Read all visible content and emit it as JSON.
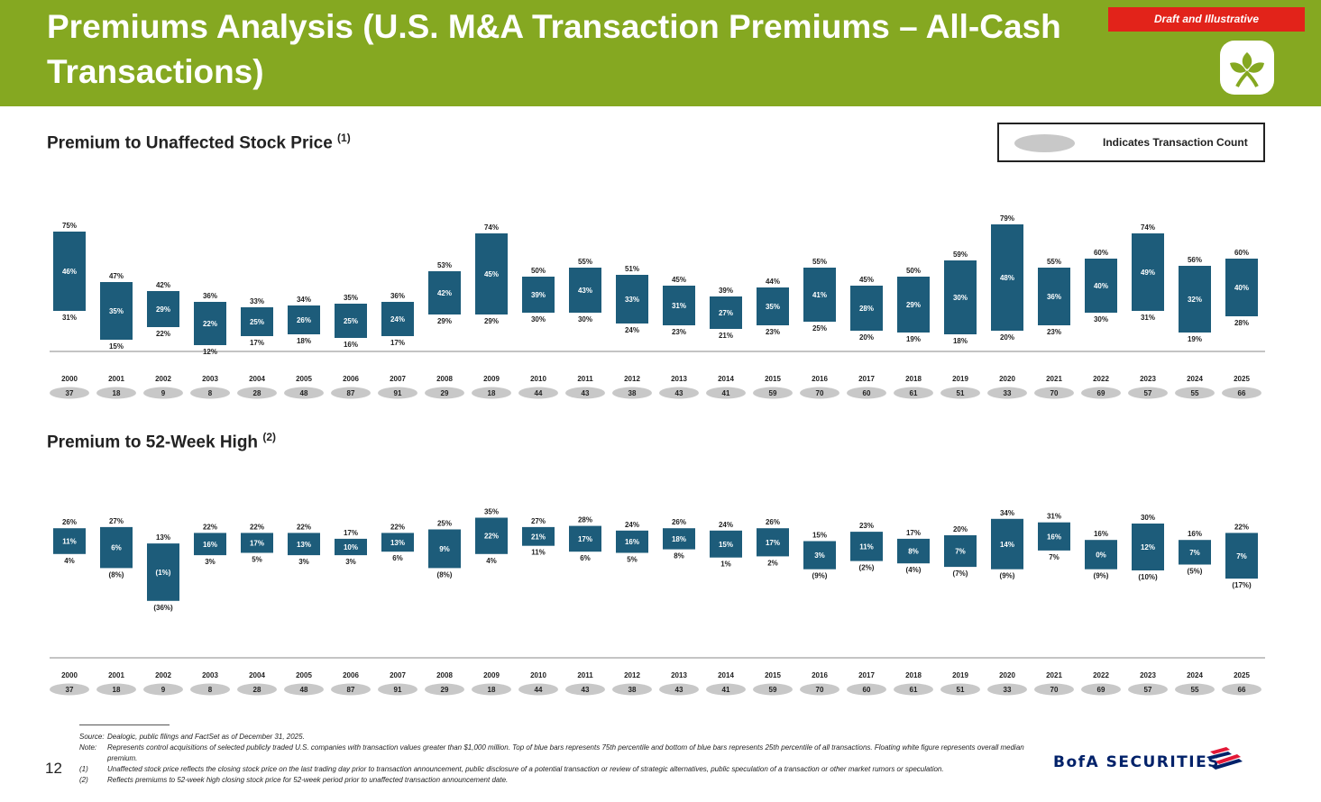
{
  "header": {
    "title": "Premiums Analysis (U.S. M&A Transaction Premiums – All-Cash Transactions)",
    "badge": "Draft and Illustrative",
    "logo_icon": "leaf-logo-icon"
  },
  "legend": {
    "label": "Indicates Transaction Count",
    "oval_color": "#c8c8c8"
  },
  "colors": {
    "header_green": "#85A821",
    "bar": "#1D5C7A",
    "badge_red": "#E2231A",
    "oval": "#c8c8c8"
  },
  "chart_data": [
    {
      "type": "bar",
      "title": "Premium to Unaffected Stock Price",
      "title_note": "(1)",
      "categories": [
        "2000",
        "2001",
        "2002",
        "2003",
        "2004",
        "2005",
        "2006",
        "2007",
        "2008",
        "2009",
        "2010",
        "2011",
        "2012",
        "2013",
        "2014",
        "2015",
        "2016",
        "2017",
        "2018",
        "2019",
        "2020",
        "2021",
        "2022",
        "2023",
        "2024",
        "2025"
      ],
      "series": [
        {
          "name": "75th percentile",
          "values": [
            75,
            47,
            42,
            36,
            33,
            34,
            35,
            36,
            53,
            74,
            50,
            55,
            51,
            45,
            39,
            44,
            55,
            45,
            50,
            59,
            79,
            55,
            60,
            74,
            56,
            60
          ],
          "labels": [
            "75%",
            "47%",
            "42%",
            "36%",
            "33%",
            "34%",
            "35%",
            "36%",
            "53%",
            "74%",
            "50%",
            "55%",
            "51%",
            "45%",
            "39%",
            "44%",
            "55%",
            "45%",
            "50%",
            "59%",
            "79%",
            "55%",
            "60%",
            "74%",
            "56%",
            "60%"
          ]
        },
        {
          "name": "Median",
          "values": [
            46,
            35,
            29,
            22,
            25,
            26,
            25,
            24,
            42,
            45,
            39,
            43,
            33,
            31,
            27,
            35,
            41,
            28,
            29,
            30,
            48,
            36,
            40,
            49,
            32,
            40
          ],
          "labels": [
            "46%",
            "35%",
            "29%",
            "22%",
            "25%",
            "26%",
            "25%",
            "24%",
            "42%",
            "45%",
            "39%",
            "43%",
            "33%",
            "31%",
            "27%",
            "35%",
            "41%",
            "28%",
            "29%",
            "30%",
            "48%",
            "36%",
            "40%",
            "49%",
            "32%",
            "40%"
          ]
        },
        {
          "name": "25th percentile",
          "values": [
            31,
            15,
            22,
            12,
            17,
            18,
            16,
            17,
            29,
            29,
            30,
            30,
            24,
            23,
            21,
            23,
            25,
            20,
            19,
            18,
            20,
            23,
            30,
            31,
            19,
            28
          ],
          "labels": [
            "31%",
            "15%",
            "22%",
            "12%",
            "17%",
            "18%",
            "16%",
            "17%",
            "29%",
            "29%",
            "30%",
            "30%",
            "24%",
            "23%",
            "21%",
            "23%",
            "25%",
            "20%",
            "19%",
            "18%",
            "20%",
            "23%",
            "30%",
            "31%",
            "19%",
            "28%"
          ]
        }
      ],
      "transaction_counts": [
        37,
        18,
        9,
        8,
        28,
        48,
        87,
        91,
        29,
        18,
        44,
        43,
        38,
        43,
        41,
        59,
        70,
        60,
        61,
        51,
        33,
        70,
        69,
        57,
        55,
        66
      ]
    },
    {
      "type": "bar",
      "title": "Premium to 52-Week High",
      "title_note": "(2)",
      "categories": [
        "2000",
        "2001",
        "2002",
        "2003",
        "2004",
        "2005",
        "2006",
        "2007",
        "2008",
        "2009",
        "2010",
        "2011",
        "2012",
        "2013",
        "2014",
        "2015",
        "2016",
        "2017",
        "2018",
        "2019",
        "2020",
        "2021",
        "2022",
        "2023",
        "2024",
        "2025"
      ],
      "series": [
        {
          "name": "75th percentile",
          "values": [
            26,
            27,
            13,
            22,
            22,
            22,
            17,
            22,
            25,
            35,
            27,
            28,
            24,
            26,
            24,
            26,
            15,
            23,
            17,
            20,
            34,
            31,
            16,
            30,
            16,
            22
          ],
          "labels": [
            "26%",
            "27%",
            "13%",
            "22%",
            "22%",
            "22%",
            "17%",
            "22%",
            "25%",
            "35%",
            "27%",
            "28%",
            "24%",
            "26%",
            "24%",
            "26%",
            "15%",
            "23%",
            "17%",
            "20%",
            "34%",
            "31%",
            "16%",
            "30%",
            "16%",
            "22%"
          ]
        },
        {
          "name": "Median",
          "values": [
            11,
            6,
            -1,
            16,
            17,
            13,
            10,
            13,
            9,
            22,
            21,
            17,
            16,
            18,
            15,
            17,
            3,
            11,
            8,
            7,
            14,
            16,
            0,
            12,
            7,
            7
          ],
          "labels": [
            "11%",
            "6%",
            "(1%)",
            "16%",
            "17%",
            "13%",
            "10%",
            "13%",
            "9%",
            "22%",
            "21%",
            "17%",
            "16%",
            "18%",
            "15%",
            "17%",
            "3%",
            "11%",
            "8%",
            "7%",
            "14%",
            "16%",
            "0%",
            "12%",
            "7%",
            "7%"
          ]
        },
        {
          "name": "25th percentile",
          "values": [
            4,
            -8,
            -36,
            3,
            5,
            3,
            3,
            6,
            -8,
            4,
            11,
            6,
            5,
            8,
            1,
            2,
            -9,
            -2,
            -4,
            -7,
            -9,
            7,
            -9,
            -10,
            -5,
            -17
          ],
          "labels": [
            "4%",
            "(8%)",
            "(36%)",
            "3%",
            "5%",
            "3%",
            "3%",
            "6%",
            "(8%)",
            "4%",
            "11%",
            "6%",
            "5%",
            "8%",
            "1%",
            "2%",
            "(9%)",
            "(2%)",
            "(4%)",
            "(7%)",
            "(9%)",
            "7%",
            "(9%)",
            "(10%)",
            "(5%)",
            "(17%)"
          ]
        }
      ],
      "transaction_counts": [
        37,
        18,
        9,
        8,
        28,
        48,
        87,
        91,
        29,
        18,
        44,
        43,
        38,
        43,
        41,
        59,
        70,
        60,
        61,
        51,
        33,
        70,
        69,
        57,
        55,
        66
      ]
    }
  ],
  "footnotes": [
    {
      "key": "Source:",
      "text": "Dealogic, public filings and FactSet as of December 31, 2025."
    },
    {
      "key": "Note:",
      "text": "Represents control acquisitions of selected publicly traded U.S. companies with transaction values greater than $1,000 million. Top of blue bars represents 75th percentile and bottom of blue bars represents 25th percentile of all transactions. Floating white figure represents overall median premium."
    },
    {
      "key": "(1)",
      "text": "Unaffected stock price reflects the closing stock price on the last trading day prior to transaction announcement, public disclosure of a potential transaction or review of strategic alternatives, public speculation of a transaction or other market rumors or speculation."
    },
    {
      "key": "(2)",
      "text": "Reflects premiums to 52-week high closing stock price for 52-week period prior to unaffected transaction announcement date."
    }
  ],
  "footer": {
    "page_number": "12",
    "brand": "BofA SECURITIES",
    "flag_icon": "bofa-flag-icon"
  }
}
